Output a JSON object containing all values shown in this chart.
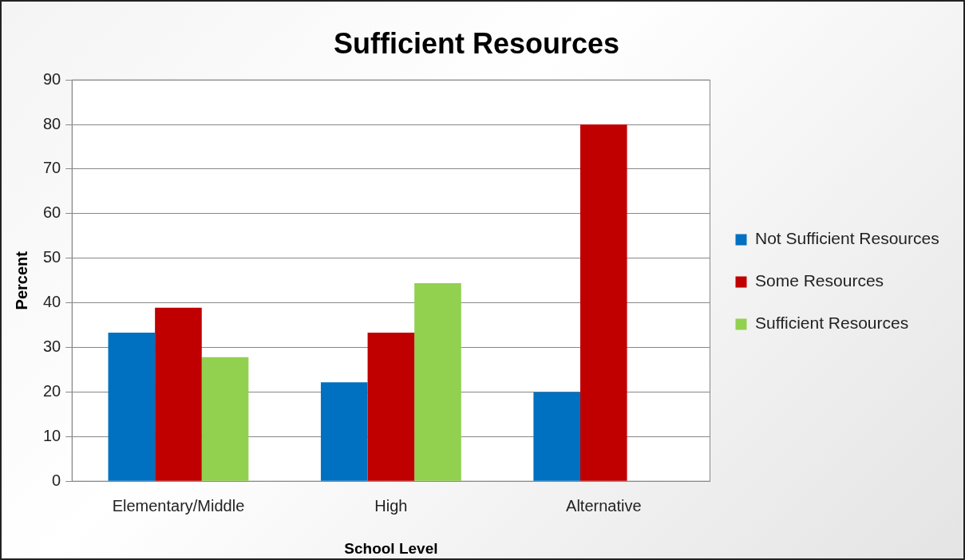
{
  "chart_data": {
    "type": "bar",
    "title": "Sufficient Resources",
    "xlabel": "School Level",
    "ylabel": "Percent",
    "categories": [
      "Elementary/Middle",
      "High",
      "Alternative"
    ],
    "series": [
      {
        "name": "Not Sufficient Resources",
        "color": "#0070c0",
        "values": [
          33.3,
          22.2,
          20
        ]
      },
      {
        "name": "Some Resources",
        "color": "#c00000",
        "values": [
          38.9,
          33.3,
          80
        ]
      },
      {
        "name": "Sufficient Resources",
        "color": "#92d050",
        "values": [
          27.8,
          44.4,
          0
        ]
      }
    ],
    "ylim": [
      0,
      90
    ],
    "yticks": [
      0,
      10,
      20,
      30,
      40,
      50,
      60,
      70,
      80,
      90
    ],
    "grid": "y",
    "legend": "right"
  }
}
